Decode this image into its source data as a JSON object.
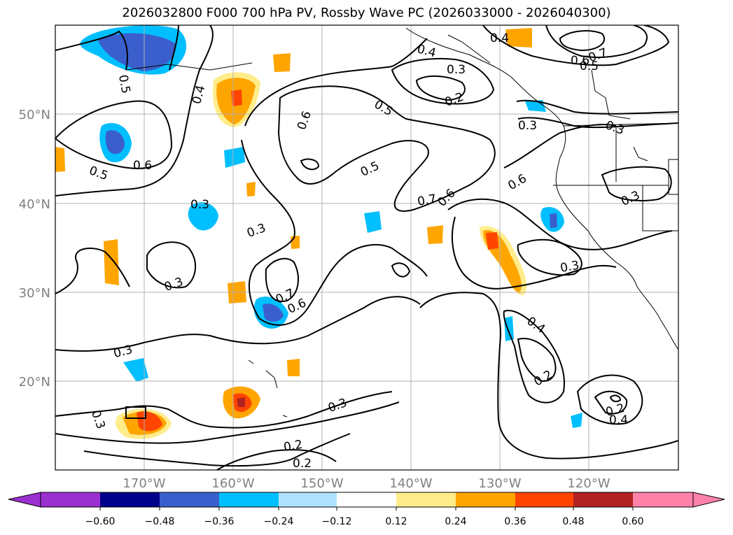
{
  "title": "2026032800 F000 700 hPa PV, Rossby Wave PC (2026033000 - 2026040300)",
  "map": {
    "lat_labels": [
      "50°N",
      "40°N",
      "30°N",
      "20°N"
    ],
    "lon_labels": [
      "170°W",
      "160°W",
      "150°W",
      "140°W",
      "130°W",
      "120°W"
    ],
    "tick_label_color": "#808080",
    "grid_color": "#b0b0b0",
    "contour_labels": [
      "0.5",
      "0.4",
      "0.6",
      "0.5",
      "0.6",
      "0.5",
      "0.5",
      "0.6",
      "0.4",
      "0.3",
      "0.2",
      "0.6",
      "0.7",
      "0.5",
      "0.3",
      "0.3",
      "0.3",
      "0.3",
      "0.3",
      "0.7",
      "0.6",
      "0.7",
      "0.6",
      "0.3",
      "0.4",
      "0.3",
      "0.3",
      "0.3",
      "0.2",
      "0.2",
      "0.2",
      "0.2",
      "0.4",
      "0.3",
      "0.4"
    ]
  },
  "colorbar": {
    "ticks": [
      "−0.60",
      "−0.48",
      "−0.36",
      "−0.24",
      "−0.12",
      "0.12",
      "0.24",
      "0.36",
      "0.48",
      "0.60"
    ],
    "colors": [
      "#9b30d0",
      "#00008b",
      "#3a5fcd",
      "#00bfff",
      "#b0e2ff",
      "#ffffff",
      "#ffec8b",
      "#ffa500",
      "#ff4500",
      "#b22222",
      "#ff82ab"
    ]
  }
}
